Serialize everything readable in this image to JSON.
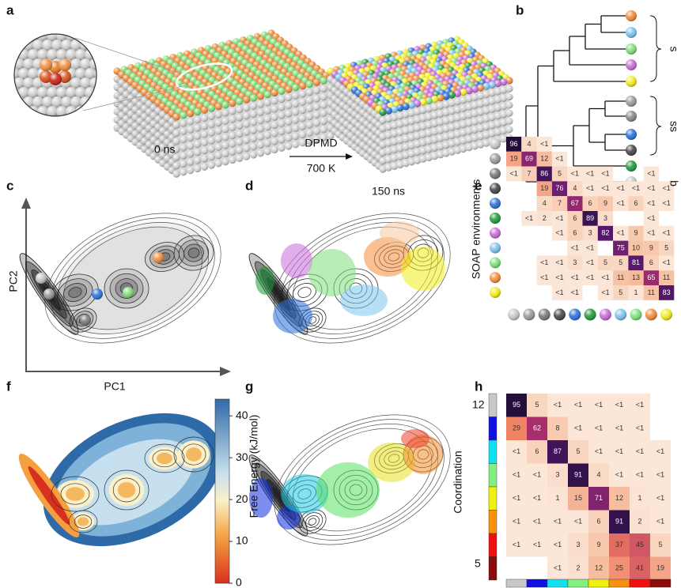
{
  "panel_labels": [
    "a",
    "b",
    "c",
    "d",
    "e",
    "f",
    "g",
    "h"
  ],
  "panel_a": {
    "left_time": "0 ns",
    "arrow_top": "DPMD",
    "arrow_bottom": "700 K",
    "right_time": "150 ns"
  },
  "panel_b": {
    "groups": [
      "s",
      "ss",
      "b"
    ]
  },
  "panel_c": {
    "y_label": "PC2",
    "x_label": "PC1"
  },
  "panel_e": {
    "y_label": "SOAP environments",
    "matrix": [
      [
        96,
        4,
        "<1",
        null,
        null,
        null,
        null,
        null,
        null,
        null,
        null
      ],
      [
        19,
        69,
        12,
        "<1",
        null,
        null,
        null,
        null,
        null,
        null,
        null
      ],
      [
        "<1",
        7,
        86,
        5,
        "<1",
        "<1",
        "<1",
        null,
        null,
        "<1",
        null
      ],
      [
        null,
        null,
        19,
        76,
        4,
        "<1",
        "<1",
        "<1",
        "<1",
        "<1",
        "<1"
      ],
      [
        null,
        null,
        4,
        7,
        67,
        6,
        9,
        "<1",
        6,
        "<1",
        "<1"
      ],
      [
        null,
        "<1",
        2,
        "<1",
        6,
        89,
        3,
        null,
        null,
        "<1",
        null
      ],
      [
        null,
        null,
        null,
        "<1",
        6,
        3,
        82,
        "<1",
        9,
        "<1",
        "<1"
      ],
      [
        null,
        null,
        null,
        null,
        "<1",
        "<1",
        null,
        75,
        10,
        9,
        5
      ],
      [
        null,
        null,
        "<1",
        "<1",
        3,
        "<1",
        5,
        5,
        81,
        6,
        "<1"
      ],
      [
        null,
        null,
        "<1",
        "<1",
        "<1",
        "<1",
        "<1",
        11,
        13,
        65,
        11
      ],
      [
        null,
        null,
        null,
        "<1",
        "<1",
        null,
        "<1",
        5,
        1,
        11,
        83
      ]
    ]
  },
  "panel_f": {
    "colorbar_label": "Free Energy (kJ/mol)",
    "colorbar_lim": [
      0,
      44
    ],
    "colorbar_ticks": [
      0,
      10,
      20,
      30,
      40
    ]
  },
  "panel_h": {
    "y_label": "Coordination",
    "y_ticks": [
      12,
      5
    ],
    "matrix": [
      [
        95,
        5,
        "<1",
        "<1",
        "<1",
        "<1",
        "<1",
        null
      ],
      [
        29,
        62,
        8,
        "<1",
        "<1",
        "<1",
        "<1",
        null
      ],
      [
        "<1",
        6,
        87,
        5,
        "<1",
        "<1",
        "<1",
        "<1"
      ],
      [
        "<1",
        "<1",
        3,
        91,
        4,
        "<1",
        "<1",
        "<1"
      ],
      [
        "<1",
        "<1",
        1,
        15,
        71,
        12,
        1,
        "<1"
      ],
      [
        "<1",
        "<1",
        "<1",
        "<1",
        6,
        91,
        2,
        "<1"
      ],
      [
        "<1",
        "<1",
        "<1",
        3,
        9,
        37,
        45,
        5
      ],
      [
        null,
        null,
        "<1",
        2,
        12,
        25,
        41,
        19
      ]
    ]
  }
}
